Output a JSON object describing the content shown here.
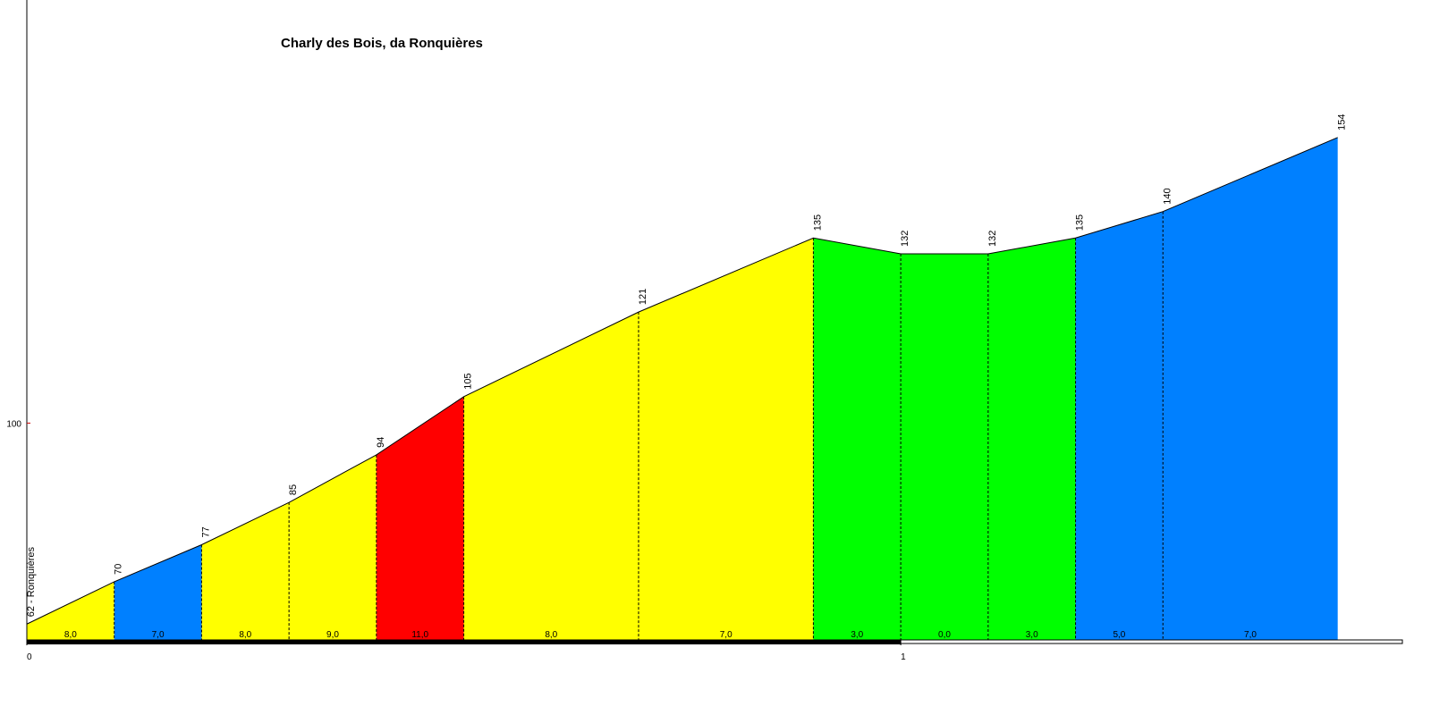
{
  "chart_data": {
    "type": "elevation-profile",
    "title": "Charly des Bois, da Ronquières",
    "x": [
      0,
      0.1,
      0.2,
      0.3,
      0.4,
      0.5,
      0.7,
      0.9,
      1.0,
      1.1,
      1.2,
      1.3,
      1.5
    ],
    "values": [
      62,
      70,
      77,
      85,
      94,
      105,
      121,
      135,
      132,
      132,
      135,
      140,
      154
    ],
    "value_labels": [
      "62 - Ronquières",
      "70",
      "77",
      "85",
      "94",
      "105",
      "121",
      "135",
      "132",
      "132",
      "135",
      "140",
      "154"
    ],
    "segments": {
      "values": [
        8,
        7,
        8,
        9,
        11,
        8,
        7,
        3,
        0,
        3,
        5,
        7
      ],
      "value_labels": [
        "8,0",
        "7,0",
        "8,0",
        "9,0",
        "11,0",
        "8,0",
        "7,0",
        "3,0",
        "0,0",
        "3,0",
        "5,0",
        "7,0"
      ],
      "colors": [
        "#ffff00",
        "#0080ff",
        "#ffff00",
        "#ffff00",
        "#ff0000",
        "#ffff00",
        "#ffff00",
        "#00ff00",
        "#00ff00",
        "#00ff00",
        "#0080ff",
        "#0080ff"
      ]
    },
    "xlim": [
      0,
      1.574
    ],
    "xticks": [
      0,
      1
    ],
    "ylim": [
      59,
      180
    ],
    "yticks": [
      100
    ]
  }
}
